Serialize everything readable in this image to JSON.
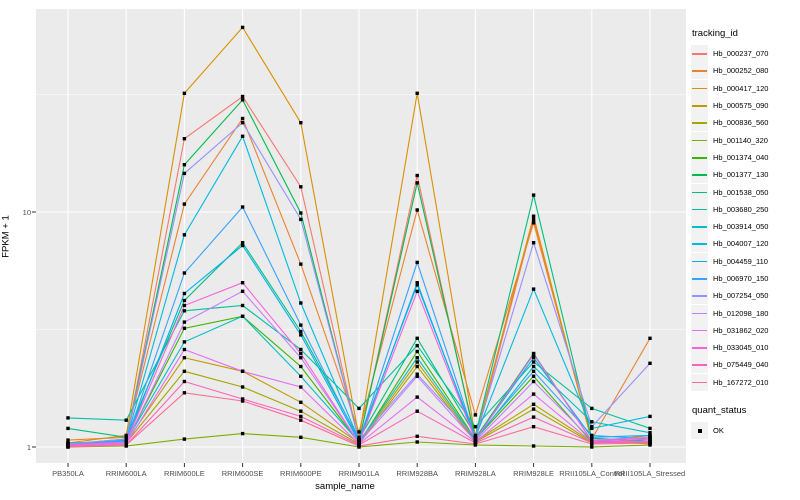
{
  "chart_data": {
    "type": "line",
    "title": "",
    "xlabel": "sample_name",
    "ylabel": "FPKM + 1",
    "y_scale": "log10",
    "y_ticks": [
      {
        "value": 1,
        "label": "1"
      },
      {
        "value": 10,
        "label": "10"
      }
    ],
    "y_minor_ticks": [
      3.1623,
      31.623
    ],
    "ylim": [
      0.85,
      72
    ],
    "grid": true,
    "legend_position": "right",
    "panel_bg": "#EBEBEB",
    "grid_color": "#FFFFFF",
    "marker": "black-square",
    "marker_color": "#000000",
    "legend_title": "tracking_id",
    "categories": [
      "PB350LA",
      "RRIM600LA",
      "RRIM600LE",
      "RRIM600SE",
      "RRIM600PE",
      "RRIM901LA",
      "RRIM928BA",
      "RRIM928LA",
      "RRIM928LE",
      "RRII105LA_Control",
      "RRII105LA_Stressed"
    ],
    "series": [
      {
        "name": "Hb_000237_070",
        "color": "#F8766D",
        "values": [
          1.03,
          1.06,
          20.5,
          31.0,
          12.8,
          1.05,
          14.3,
          1.06,
          9.3,
          1.06,
          1.03
        ]
      },
      {
        "name": "Hb_000252_080",
        "color": "#EA8331",
        "values": [
          1.07,
          1.1,
          10.8,
          25.0,
          6.0,
          1.16,
          10.2,
          1.37,
          9.0,
          1.08,
          2.9
        ]
      },
      {
        "name": "Hb_000417_120",
        "color": "#D89000",
        "values": [
          1.04,
          1.12,
          32.0,
          61.0,
          24.0,
          1.1,
          32.0,
          1.1,
          9.6,
          1.06,
          1.1
        ]
      },
      {
        "name": "Hb_000575_090",
        "color": "#C09B00",
        "values": [
          1.02,
          1.05,
          2.4,
          2.1,
          1.55,
          1.04,
          2.3,
          1.06,
          1.52,
          1.05,
          1.12
        ]
      },
      {
        "name": "Hb_000836_560",
        "color": "#A3A500",
        "values": [
          1.01,
          1.04,
          2.1,
          1.8,
          1.42,
          1.03,
          2.2,
          1.05,
          1.45,
          1.04,
          1.08
        ]
      },
      {
        "name": "Hb_001140_320",
        "color": "#7CAE00",
        "values": [
          1.0,
          1.01,
          1.08,
          1.14,
          1.1,
          1.0,
          1.05,
          1.02,
          1.01,
          1.0,
          1.02
        ]
      },
      {
        "name": "Hb_001374_040",
        "color": "#39B600",
        "values": [
          1.02,
          1.05,
          3.2,
          3.6,
          2.2,
          1.04,
          2.55,
          1.08,
          2.0,
          1.05,
          1.05
        ]
      },
      {
        "name": "Hb_001377_130",
        "color": "#00BB4E",
        "values": [
          1.03,
          1.08,
          15.9,
          30.0,
          9.9,
          1.06,
          13.3,
          1.09,
          2.5,
          1.06,
          1.04
        ]
      },
      {
        "name": "Hb_001538_050",
        "color": "#00BF7D",
        "values": [
          1.2,
          1.1,
          4.2,
          7.4,
          3.1,
          1.08,
          2.9,
          1.12,
          11.8,
          1.09,
          1.06
        ]
      },
      {
        "name": "Hb_003680_250",
        "color": "#00C1A3",
        "values": [
          1.33,
          1.3,
          3.8,
          4.0,
          2.6,
          1.46,
          2.7,
          1.22,
          2.3,
          1.46,
          1.2
        ]
      },
      {
        "name": "Hb_003914_050",
        "color": "#00BFC4",
        "values": [
          1.04,
          1.06,
          2.8,
          3.6,
          2.0,
          1.05,
          2.4,
          1.07,
          2.2,
          1.28,
          1.15
        ]
      },
      {
        "name": "Hb_004007_120",
        "color": "#00BAE0",
        "values": [
          1.03,
          1.07,
          8.0,
          21.0,
          4.1,
          1.07,
          4.9,
          1.1,
          4.7,
          1.2,
          1.35
        ]
      },
      {
        "name": "Hb_004459_110",
        "color": "#00B0F6",
        "values": [
          1.02,
          1.05,
          4.5,
          7.2,
          3.0,
          1.05,
          5.0,
          1.08,
          2.4,
          1.1,
          1.12
        ]
      },
      {
        "name": "Hb_006970_150",
        "color": "#35A2FF",
        "values": [
          1.02,
          1.06,
          5.5,
          10.5,
          3.3,
          1.06,
          6.1,
          1.09,
          2.1,
          1.12,
          1.08
        ]
      },
      {
        "name": "Hb_007254_050",
        "color": "#9590FF",
        "values": [
          1.03,
          1.08,
          14.6,
          24.0,
          9.3,
          1.07,
          2.04,
          1.1,
          7.4,
          1.22,
          2.27
        ]
      },
      {
        "name": "Hb_012098_180",
        "color": "#C77CFF",
        "values": [
          1.02,
          1.04,
          3.4,
          4.6,
          2.4,
          1.04,
          2.0,
          1.06,
          1.9,
          1.07,
          1.1
        ]
      },
      {
        "name": "Hb_031862_020",
        "color": "#E76BF3",
        "values": [
          1.01,
          1.03,
          2.6,
          2.1,
          1.8,
          1.03,
          1.63,
          1.05,
          1.68,
          1.05,
          1.06
        ]
      },
      {
        "name": "Hb_033045_010",
        "color": "#FA62DB",
        "values": [
          1.02,
          1.05,
          4.0,
          5.0,
          2.5,
          1.04,
          4.6,
          1.07,
          2.48,
          1.06,
          1.08
        ]
      },
      {
        "name": "Hb_075449_040",
        "color": "#FF62BC",
        "values": [
          1.01,
          1.02,
          1.9,
          1.6,
          1.35,
          1.02,
          1.42,
          1.04,
          1.34,
          1.04,
          1.05
        ]
      },
      {
        "name": "Hb_167272_010",
        "color": "#FF6A98",
        "values": [
          1.0,
          1.02,
          1.7,
          1.57,
          1.3,
          1.01,
          1.11,
          1.03,
          1.22,
          1.03,
          1.04
        ]
      }
    ],
    "quant_legend": {
      "title": "quant_status",
      "items": [
        {
          "label": "OK",
          "marker": "black-square"
        }
      ]
    }
  }
}
